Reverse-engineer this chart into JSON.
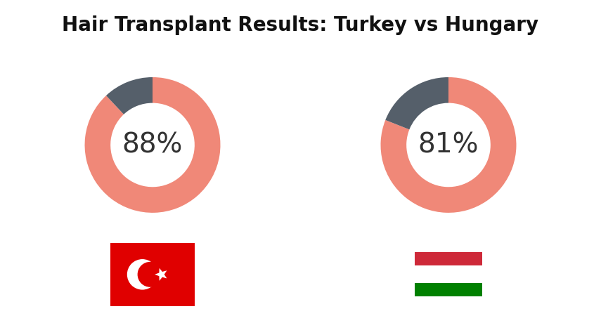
{
  "title": "Hair Transplant Results: Turkey vs Hungary",
  "title_fontsize": 20,
  "background_color": "#ffffff",
  "charts": [
    {
      "label": "Turkey",
      "value": 88,
      "remainder": 12,
      "text": "88%"
    },
    {
      "label": "Hungary",
      "value": 81,
      "remainder": 19,
      "text": "81%"
    }
  ],
  "donut_color": "#F08878",
  "remainder_color": "#555F6A",
  "donut_outer_r": 1.0,
  "donut_inner_r": 0.62,
  "text_fontsize": 28,
  "turkey_flag": {
    "bg_color": "#E00000",
    "crescent_color": "#ffffff",
    "star_color": "#ffffff"
  },
  "hungary_flag": {
    "red_color": "#CE2939",
    "green_color": "#008000"
  }
}
